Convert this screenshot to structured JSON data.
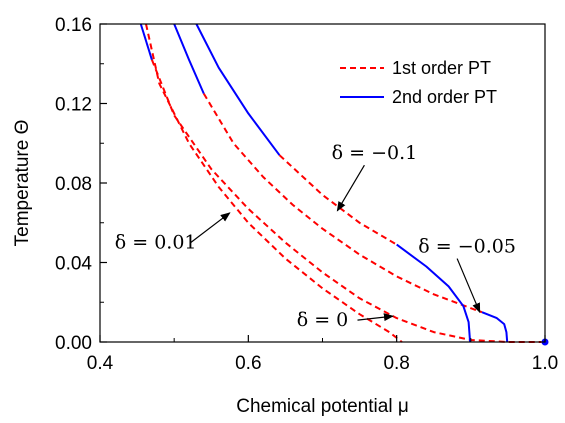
{
  "chart_data": {
    "type": "line",
    "xlabel": "Chemical potential μ",
    "ylabel": "Temperature Θ",
    "xlim": [
      0.4,
      1.0
    ],
    "ylim": [
      0.0,
      0.16
    ],
    "xticks": [
      "0.4",
      "0.6",
      "0.8",
      "1.0"
    ],
    "yticks": [
      "0.00",
      "0.04",
      "0.08",
      "0.12",
      "0.16"
    ],
    "grid": false,
    "legend_position": "top-right",
    "legend": [
      {
        "label": "1st order PT",
        "color": "#ff0000",
        "style": "dashed"
      },
      {
        "label": "2nd order PT",
        "color": "#0000ff",
        "style": "solid"
      }
    ],
    "series": [
      {
        "name": "δ = 0",
        "segments": [
          {
            "style": "dashed",
            "color": "#ff0000",
            "points": [
              [
                0.462,
                0.16
              ],
              [
                0.48,
                0.13
              ],
              [
                0.52,
                0.1
              ],
              [
                0.56,
                0.078
              ],
              [
                0.6,
                0.06
              ],
              [
                0.65,
                0.042
              ],
              [
                0.7,
                0.027
              ],
              [
                0.75,
                0.014
              ],
              [
                0.79,
                0.005
              ],
              [
                0.807,
                0.0
              ]
            ]
          }
        ]
      },
      {
        "name": "δ = 0.01",
        "segments": [
          {
            "style": "solid",
            "color": "#0000ff",
            "points": [
              [
                0.455,
                0.16
              ],
              [
                0.47,
                0.142
              ]
            ]
          },
          {
            "style": "dashed",
            "color": "#ff0000",
            "points": [
              [
                0.47,
                0.142
              ],
              [
                0.5,
                0.114
              ],
              [
                0.55,
                0.087
              ],
              [
                0.6,
                0.067
              ],
              [
                0.65,
                0.05
              ],
              [
                0.7,
                0.035
              ],
              [
                0.75,
                0.022
              ],
              [
                0.8,
                0.012
              ],
              [
                0.85,
                0.005
              ],
              [
                0.9,
                0.001
              ],
              [
                0.95,
                0.0
              ],
              [
                0.995,
                0.0
              ]
            ]
          }
        ]
      },
      {
        "name": "δ = -0.05",
        "segments": [
          {
            "style": "solid",
            "color": "#0000ff",
            "points": [
              [
                0.5,
                0.16
              ],
              [
                0.52,
                0.142
              ],
              [
                0.54,
                0.125
              ]
            ]
          },
          {
            "style": "dashed",
            "color": "#ff0000",
            "points": [
              [
                0.54,
                0.125
              ],
              [
                0.58,
                0.1
              ],
              [
                0.62,
                0.083
              ],
              [
                0.66,
                0.069
              ],
              [
                0.7,
                0.057
              ],
              [
                0.75,
                0.044
              ],
              [
                0.8,
                0.033
              ],
              [
                0.85,
                0.024
              ],
              [
                0.9,
                0.017
              ],
              [
                0.915,
                0.015
              ]
            ]
          },
          {
            "style": "solid",
            "color": "#0000ff",
            "points": [
              [
                0.915,
                0.015
              ],
              [
                0.935,
                0.012
              ],
              [
                0.945,
                0.009
              ],
              [
                0.948,
                0.005
              ],
              [
                0.949,
                0.0
              ]
            ]
          }
        ]
      },
      {
        "name": "δ = -0.1",
        "segments": [
          {
            "style": "solid",
            "color": "#0000ff",
            "points": [
              [
                0.53,
                0.16
              ],
              [
                0.56,
                0.138
              ],
              [
                0.6,
                0.115
              ],
              [
                0.642,
                0.094
              ]
            ]
          },
          {
            "style": "dashed",
            "color": "#ff0000",
            "points": [
              [
                0.642,
                0.094
              ],
              [
                0.7,
                0.074
              ],
              [
                0.75,
                0.06
              ],
              [
                0.8,
                0.049
              ]
            ]
          },
          {
            "style": "solid",
            "color": "#0000ff",
            "points": [
              [
                0.8,
                0.049
              ],
              [
                0.84,
                0.038
              ],
              [
                0.87,
                0.028
              ],
              [
                0.89,
                0.018
              ],
              [
                0.897,
                0.01
              ],
              [
                0.899,
                0.0
              ]
            ]
          }
        ]
      }
    ],
    "endpoint_marker": {
      "x": 1.0,
      "y": 0.0,
      "color": "#0000ff"
    },
    "annotations": [
      {
        "text": "δ = −0.1",
        "label_at": [
          0.77,
          0.092
        ],
        "arrow_to": [
          0.72,
          0.066
        ]
      },
      {
        "text": "δ = −0.05",
        "label_at": [
          0.895,
          0.045
        ],
        "arrow_to": [
          0.912,
          0.015
        ]
      },
      {
        "text": "δ = 0.01",
        "label_at": [
          0.475,
          0.047
        ],
        "arrow_to": [
          0.575,
          0.065
        ]
      },
      {
        "text": "δ = 0",
        "label_at": [
          0.7,
          0.008
        ],
        "arrow_to": [
          0.795,
          0.013
        ]
      }
    ]
  }
}
